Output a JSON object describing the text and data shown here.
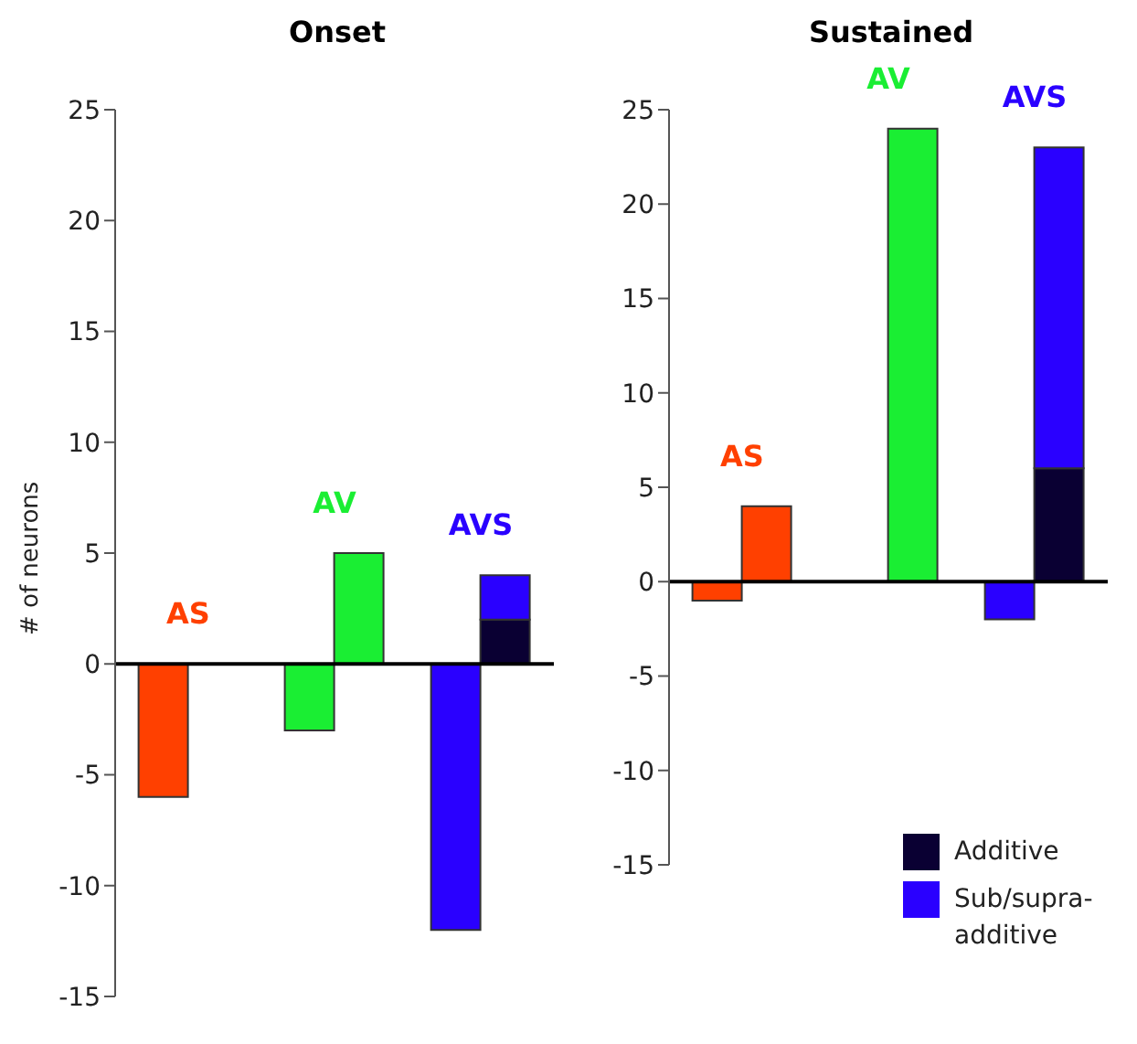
{
  "chart_data": [
    {
      "type": "bar",
      "title": "Onset",
      "ylabel": "# of neurons",
      "categories": [
        "AS",
        "AV",
        "AVS"
      ],
      "stacked": true,
      "ylim": [
        -15,
        25
      ],
      "yticks": [
        -15,
        -10,
        -5,
        0,
        5,
        10,
        15,
        20,
        25
      ],
      "tick_labels": "y",
      "legend": false,
      "series": [
        {
          "colors": [
            "#ff4000",
            "#1aee33",
            "#2a00ff"
          ],
          "values": [
            -6,
            -3,
            -12
          ]
        },
        {
          "color": "#0a0033",
          "values": [
            null,
            null,
            2
          ]
        },
        {
          "color": "#2a00ff",
          "colors": [
            "#ff4000",
            "#1aee33",
            "#2a00ff"
          ],
          "values": [
            null,
            5,
            2
          ]
        }
      ]
    },
    {
      "type": "bar",
      "title": "Sustained",
      "categories": [
        "AS",
        "AV",
        "AVS"
      ],
      "stacked": true,
      "ylim": [
        -15,
        25
      ],
      "yticks": [
        -15,
        -10,
        -5,
        0,
        5,
        10,
        15,
        20,
        25
      ],
      "tick_labels": "y",
      "legend": "bottom right",
      "series": [
        {
          "colors": [
            "#ff4000",
            "#1aee33",
            "#2a00ff"
          ],
          "values": [
            -1,
            null,
            -2
          ]
        },
        {
          "name": "Additive",
          "color": "#0a0033",
          "values": [
            null,
            null,
            6
          ]
        },
        {
          "name": "Sub/supra-additive",
          "color": "#2a00ff",
          "colors": [
            "#ff4000",
            "#1aee33",
            "#2a00ff"
          ],
          "values": [
            4,
            24,
            17
          ]
        }
      ]
    }
  ]
}
